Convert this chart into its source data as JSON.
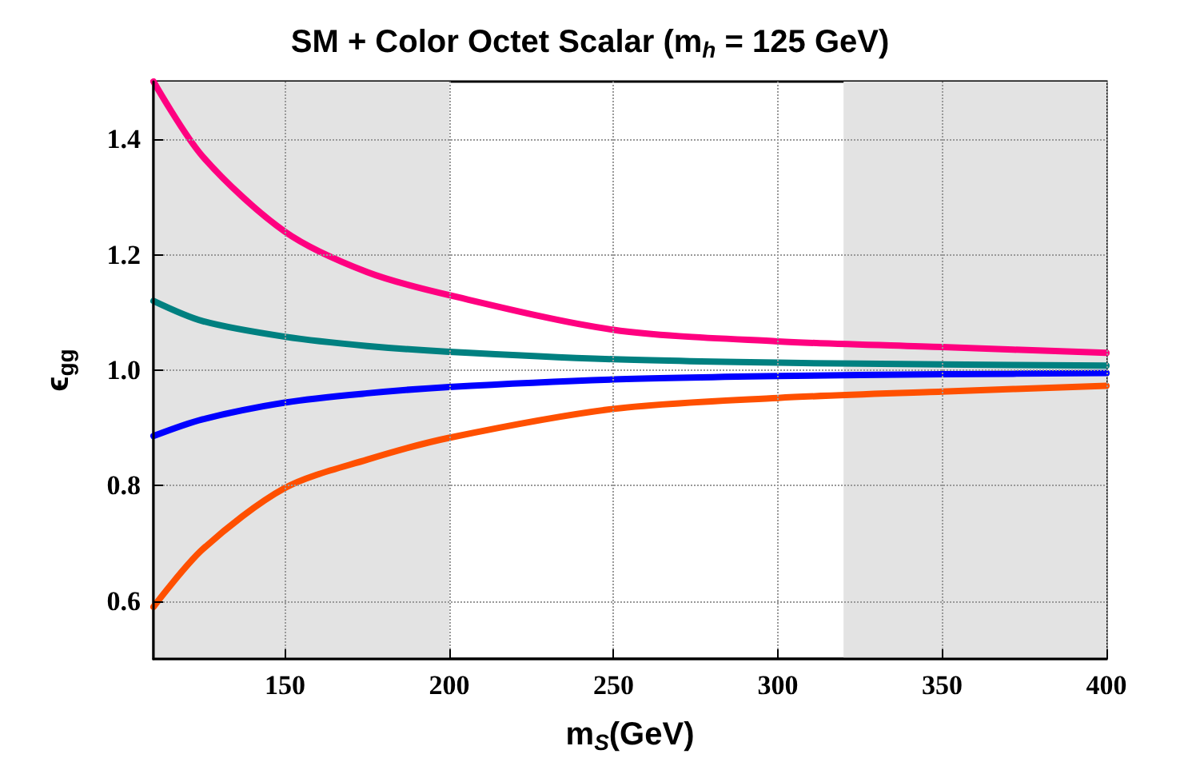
{
  "chart_data": {
    "type": "line",
    "title": "SM + Color Octet Scalar (m$_{h}$ = 125 GeV)",
    "xlabel": "m$_{S}$(GeV)",
    "ylabel": "ϵ$_{gg}$",
    "x": [
      110,
      125,
      150,
      175,
      200,
      250,
      300,
      350,
      400
    ],
    "series": [
      {
        "color": "#ff0080",
        "values": [
          1.5,
          1.37,
          1.24,
          1.17,
          1.13,
          1.07,
          1.05,
          1.04,
          1.03
        ]
      },
      {
        "color": "#008080",
        "values": [
          1.12,
          1.085,
          1.058,
          1.042,
          1.032,
          1.019,
          1.013,
          1.01,
          1.008
        ]
      },
      {
        "color": "#0000ff",
        "values": [
          0.886,
          0.915,
          0.944,
          0.96,
          0.971,
          0.984,
          0.99,
          0.993,
          0.995
        ]
      },
      {
        "color": "#ff5000",
        "values": [
          0.59,
          0.69,
          0.796,
          0.845,
          0.883,
          0.933,
          0.952,
          0.963,
          0.973
        ]
      }
    ],
    "xlim": [
      110,
      400
    ],
    "xticks": [
      150,
      200,
      250,
      300,
      350,
      400
    ],
    "ylim": [
      0.5,
      1.5
    ],
    "yticks": [
      {
        "value": 0.6,
        "label": "0.6"
      },
      {
        "value": 0.8,
        "label": "0.8"
      },
      {
        "value": 1.0,
        "label": "1.0"
      },
      {
        "value": 1.2,
        "label": "1.2"
      },
      {
        "value": 1.4,
        "label": "1.4"
      }
    ],
    "bands": [
      {
        "axis": "x",
        "from": 110,
        "to": 200,
        "color": "#e3e3e3"
      },
      {
        "axis": "x",
        "from": 320,
        "to": 400,
        "color": "#e3e3e3"
      }
    ],
    "grid": true,
    "marker": "none",
    "line_style": "solid"
  }
}
